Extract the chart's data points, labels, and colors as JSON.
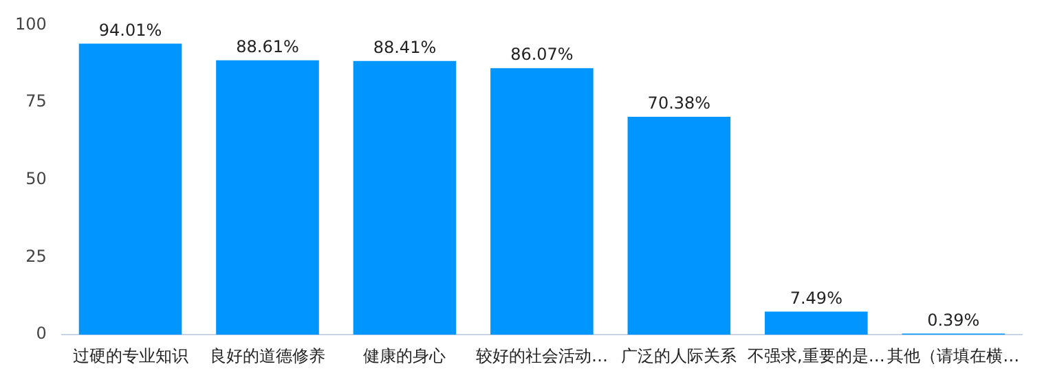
{
  "chart_data": {
    "type": "bar",
    "categories": [
      "过硬的专业知识",
      "良好的道德修养",
      "健康的身心",
      "较好的社会活动…",
      "广泛的人际关系",
      "不强求,重要的是…",
      "其他（请填在横…"
    ],
    "values": [
      94.01,
      88.61,
      88.41,
      86.07,
      70.38,
      7.49,
      0.39
    ],
    "value_labels": [
      "94.01%",
      "88.61%",
      "88.41%",
      "86.07%",
      "70.38%",
      "7.49%",
      "0.39%"
    ],
    "color": "#0095ff",
    "ylim": [
      0,
      100
    ],
    "yticks": [
      0,
      25,
      50,
      75,
      100
    ],
    "grid": false
  }
}
